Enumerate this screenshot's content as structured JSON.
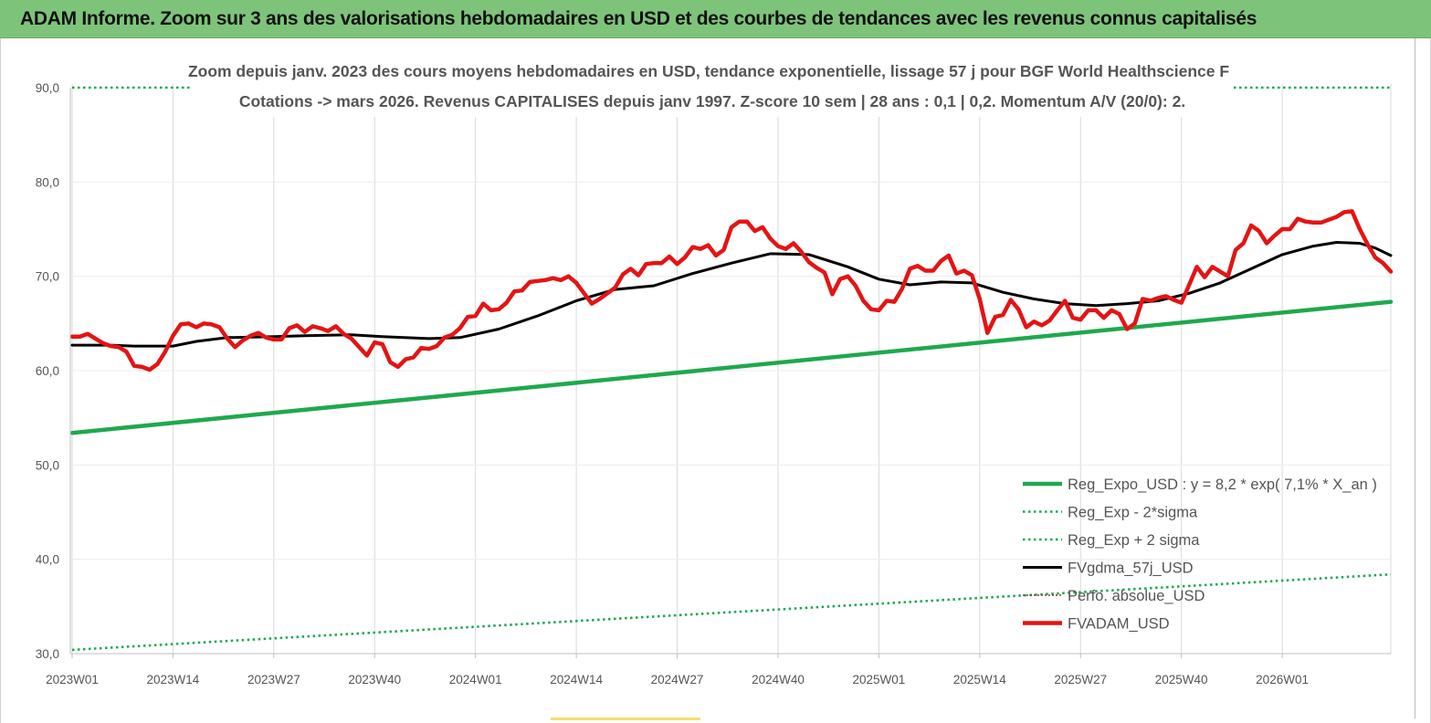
{
  "header": {
    "title": "ADAM Informe. Zoom sur 3 ans des valorisations hebdomadaires en USD et des courbes de tendances avec les revenus connus capitalisés"
  },
  "chart_data": {
    "type": "line",
    "title": "Zoom depuis janv. 2023 des cours moyens hebdomadaires en USD, tendance exponentielle, lissage 57 j pour BGF World Healthscience F",
    "subtitle": "Cotations -> mars 2026. Revenus CAPITALISES depuis janv 1997. Z-score 10 sem | 28 ans : 0,1 | 0,2. Momentum A/V (20/0): 2.",
    "ylim": [
      30,
      90
    ],
    "yticks": [
      "30,0",
      "40,0",
      "50,0",
      "60,0",
      "70,0",
      "80,0",
      "90,0"
    ],
    "ytick_values": [
      30,
      40,
      50,
      60,
      70,
      80,
      90
    ],
    "x_count": 170,
    "xticks": [
      {
        "label": "2023W01",
        "index": 0
      },
      {
        "label": "2023W14",
        "index": 13
      },
      {
        "label": "2023W27",
        "index": 26
      },
      {
        "label": "2023W40",
        "index": 39
      },
      {
        "label": "2024W01",
        "index": 52
      },
      {
        "label": "2024W14",
        "index": 65
      },
      {
        "label": "2024W27",
        "index": 78
      },
      {
        "label": "2024W40",
        "index": 91
      },
      {
        "label": "2025W01",
        "index": 104
      },
      {
        "label": "2025W14",
        "index": 117
      },
      {
        "label": "2025W27",
        "index": 130
      },
      {
        "label": "2025W40",
        "index": 143
      },
      {
        "label": "2026W01",
        "index": 156
      }
    ],
    "grid": "vertical",
    "legend_position": "bottom-right",
    "series": [
      {
        "name": "Reg_Expo_USD : y = 8,2 * exp( 7,1% * X_an )",
        "color": "#1fa84f",
        "style": "solid-thick",
        "points": [
          [
            0,
            53.4
          ],
          [
            170,
            67.3
          ]
        ]
      },
      {
        "name": "Reg_Exp - 2*sigma",
        "color": "#1fa84f",
        "style": "dotted",
        "points": [
          [
            0,
            30.4
          ],
          [
            170,
            38.4
          ]
        ]
      },
      {
        "name": "Reg_Exp + 2 sigma",
        "color": "#1fa84f",
        "style": "dotted",
        "points": [
          [
            0,
            90.0
          ],
          [
            170,
            90.0
          ]
        ]
      },
      {
        "name": "FVgdma_57j_USD",
        "color": "#000000",
        "style": "solid",
        "points": [
          [
            0,
            62.7
          ],
          [
            5,
            62.7
          ],
          [
            8,
            62.6
          ],
          [
            13,
            62.6
          ],
          [
            16,
            63.1
          ],
          [
            20,
            63.5
          ],
          [
            26,
            63.6
          ],
          [
            30,
            63.7
          ],
          [
            36,
            63.8
          ],
          [
            40,
            63.6
          ],
          [
            46,
            63.4
          ],
          [
            50,
            63.5
          ],
          [
            55,
            64.4
          ],
          [
            60,
            65.8
          ],
          [
            65,
            67.4
          ],
          [
            70,
            68.6
          ],
          [
            75,
            69.0
          ],
          [
            80,
            70.3
          ],
          [
            85,
            71.4
          ],
          [
            90,
            72.4
          ],
          [
            95,
            72.3
          ],
          [
            100,
            71.0
          ],
          [
            104,
            69.7
          ],
          [
            108,
            69.1
          ],
          [
            112,
            69.4
          ],
          [
            116,
            69.3
          ],
          [
            120,
            68.3
          ],
          [
            124,
            67.6
          ],
          [
            128,
            67.1
          ],
          [
            132,
            66.9
          ],
          [
            136,
            67.1
          ],
          [
            140,
            67.4
          ],
          [
            144,
            68.2
          ],
          [
            148,
            69.3
          ],
          [
            152,
            70.8
          ],
          [
            156,
            72.3
          ],
          [
            160,
            73.2
          ],
          [
            163,
            73.6
          ],
          [
            166,
            73.5
          ],
          [
            168,
            73.0
          ],
          [
            170,
            72.2
          ]
        ]
      },
      {
        "name": "Perfo. absolue_USD",
        "color": "#8a3b2b",
        "style": "dotted-thin",
        "points": []
      },
      {
        "name": "FVADAM_USD",
        "color": "#e41414",
        "style": "solid-thick",
        "points": [
          [
            0,
            63.6
          ],
          [
            1,
            63.6
          ],
          [
            2,
            63.9
          ],
          [
            3,
            63.4
          ],
          [
            4,
            62.9
          ],
          [
            5,
            62.6
          ],
          [
            6,
            62.5
          ],
          [
            7,
            62.0
          ],
          [
            8,
            60.5
          ],
          [
            9,
            60.4
          ],
          [
            10,
            60.1
          ],
          [
            11,
            60.7
          ],
          [
            12,
            62.0
          ],
          [
            13,
            63.7
          ],
          [
            14,
            64.9
          ],
          [
            15,
            65.0
          ],
          [
            16,
            64.6
          ],
          [
            17,
            65.0
          ],
          [
            18,
            64.9
          ],
          [
            19,
            64.6
          ],
          [
            20,
            63.4
          ],
          [
            21,
            62.5
          ],
          [
            22,
            63.2
          ],
          [
            23,
            63.7
          ],
          [
            24,
            64.0
          ],
          [
            25,
            63.5
          ],
          [
            26,
            63.3
          ],
          [
            27,
            63.3
          ],
          [
            28,
            64.5
          ],
          [
            29,
            64.8
          ],
          [
            30,
            64.1
          ],
          [
            31,
            64.7
          ],
          [
            32,
            64.5
          ],
          [
            33,
            64.2
          ],
          [
            34,
            64.7
          ],
          [
            35,
            63.9
          ],
          [
            36,
            63.4
          ],
          [
            37,
            62.5
          ],
          [
            38,
            61.6
          ],
          [
            39,
            63.0
          ],
          [
            40,
            62.8
          ],
          [
            41,
            60.9
          ],
          [
            42,
            60.4
          ],
          [
            43,
            61.2
          ],
          [
            44,
            61.4
          ],
          [
            45,
            62.4
          ],
          [
            46,
            62.3
          ],
          [
            47,
            62.6
          ],
          [
            48,
            63.5
          ],
          [
            49,
            63.8
          ],
          [
            50,
            64.5
          ],
          [
            51,
            65.7
          ],
          [
            52,
            65.8
          ],
          [
            53,
            67.1
          ],
          [
            54,
            66.4
          ],
          [
            55,
            66.5
          ],
          [
            56,
            67.2
          ],
          [
            57,
            68.4
          ],
          [
            58,
            68.5
          ],
          [
            59,
            69.4
          ],
          [
            60,
            69.5
          ],
          [
            61,
            69.6
          ],
          [
            62,
            69.8
          ],
          [
            63,
            69.6
          ],
          [
            64,
            70.0
          ],
          [
            65,
            69.3
          ],
          [
            66,
            68.2
          ],
          [
            67,
            67.1
          ],
          [
            68,
            67.6
          ],
          [
            69,
            68.2
          ],
          [
            70,
            68.8
          ],
          [
            71,
            70.2
          ],
          [
            72,
            70.8
          ],
          [
            73,
            70.1
          ],
          [
            74,
            71.3
          ],
          [
            75,
            71.4
          ],
          [
            76,
            71.4
          ],
          [
            77,
            72.1
          ],
          [
            78,
            71.3
          ],
          [
            79,
            72.0
          ],
          [
            80,
            73.1
          ],
          [
            81,
            72.9
          ],
          [
            82,
            73.3
          ],
          [
            83,
            72.2
          ],
          [
            84,
            72.8
          ],
          [
            85,
            75.2
          ],
          [
            86,
            75.8
          ],
          [
            87,
            75.8
          ],
          [
            88,
            74.8
          ],
          [
            89,
            75.2
          ],
          [
            90,
            74.0
          ],
          [
            91,
            73.2
          ],
          [
            92,
            72.9
          ],
          [
            93,
            73.5
          ],
          [
            94,
            72.6
          ],
          [
            95,
            71.5
          ],
          [
            96,
            70.9
          ],
          [
            97,
            70.4
          ],
          [
            98,
            68.1
          ],
          [
            99,
            69.7
          ],
          [
            100,
            70.0
          ],
          [
            101,
            69.0
          ],
          [
            102,
            67.4
          ],
          [
            103,
            66.5
          ],
          [
            104,
            66.4
          ],
          [
            105,
            67.4
          ],
          [
            106,
            67.3
          ],
          [
            107,
            68.7
          ],
          [
            108,
            70.8
          ],
          [
            109,
            71.1
          ],
          [
            110,
            70.6
          ],
          [
            111,
            70.6
          ],
          [
            112,
            71.6
          ],
          [
            113,
            72.2
          ],
          [
            114,
            70.3
          ],
          [
            115,
            70.6
          ],
          [
            116,
            70.1
          ],
          [
            117,
            67.6
          ],
          [
            118,
            64.0
          ],
          [
            119,
            65.7
          ],
          [
            120,
            65.9
          ],
          [
            121,
            67.5
          ],
          [
            122,
            66.5
          ],
          [
            123,
            64.6
          ],
          [
            124,
            65.2
          ],
          [
            125,
            64.8
          ],
          [
            126,
            65.3
          ],
          [
            127,
            66.4
          ],
          [
            128,
            67.4
          ],
          [
            129,
            65.6
          ],
          [
            130,
            65.4
          ],
          [
            131,
            66.4
          ],
          [
            132,
            66.4
          ],
          [
            133,
            65.6
          ],
          [
            134,
            66.4
          ],
          [
            135,
            66.0
          ],
          [
            136,
            64.4
          ],
          [
            137,
            65.0
          ],
          [
            138,
            67.6
          ],
          [
            139,
            67.4
          ],
          [
            140,
            67.7
          ],
          [
            141,
            67.9
          ],
          [
            142,
            67.5
          ],
          [
            143,
            67.2
          ],
          [
            144,
            69.1
          ],
          [
            145,
            71.0
          ],
          [
            146,
            69.9
          ],
          [
            147,
            71.0
          ],
          [
            148,
            70.5
          ],
          [
            149,
            70.0
          ],
          [
            150,
            72.8
          ],
          [
            151,
            73.5
          ],
          [
            152,
            75.4
          ],
          [
            153,
            74.8
          ],
          [
            154,
            73.5
          ],
          [
            155,
            74.3
          ],
          [
            156,
            75.0
          ],
          [
            157,
            75.0
          ],
          [
            158,
            76.1
          ],
          [
            159,
            75.8
          ],
          [
            160,
            75.7
          ],
          [
            161,
            75.7
          ],
          [
            162,
            76.0
          ],
          [
            163,
            76.3
          ],
          [
            164,
            76.8
          ],
          [
            165,
            76.9
          ],
          [
            166,
            75.0
          ],
          [
            167,
            73.4
          ],
          [
            168,
            72.0
          ],
          [
            169,
            71.4
          ],
          [
            170,
            70.5
          ]
        ]
      }
    ]
  }
}
